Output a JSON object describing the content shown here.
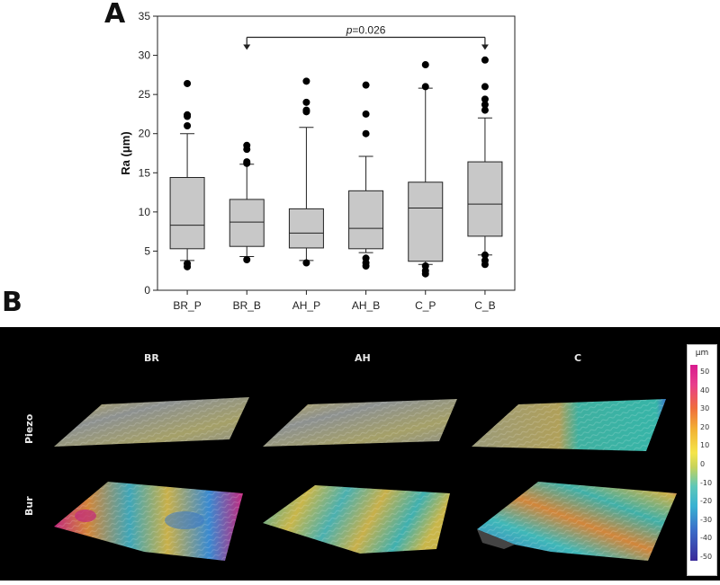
{
  "figure": {
    "panel_a_label": "A",
    "panel_b_label": "B"
  },
  "chart_data": {
    "type": "boxplot",
    "title": "",
    "xlabel": "",
    "ylabel": "Ra (μm)",
    "ylim": [
      0,
      35
    ],
    "yticks": [
      0,
      5,
      10,
      15,
      20,
      25,
      30,
      35
    ],
    "grid": false,
    "categories": [
      "BR_P",
      "BR_B",
      "AH_P",
      "AH_B",
      "C_P",
      "C_B"
    ],
    "boxes": [
      {
        "q1": 5.3,
        "median": 8.3,
        "q3": 14.4,
        "whisker_low": 3.8,
        "whisker_high": 20.0,
        "outliers": [
          3.0,
          3.4,
          21.0,
          22.2,
          22.4,
          26.4
        ]
      },
      {
        "q1": 5.6,
        "median": 8.7,
        "q3": 11.6,
        "whisker_low": 4.3,
        "whisker_high": 16.1,
        "outliers": [
          3.9,
          16.2,
          16.4,
          18.0,
          18.5
        ]
      },
      {
        "q1": 5.4,
        "median": 7.3,
        "q3": 10.4,
        "whisker_low": 3.8,
        "whisker_high": 20.8,
        "outliers": [
          3.5,
          22.8,
          23.0,
          24.0,
          26.7
        ]
      },
      {
        "q1": 5.3,
        "median": 7.9,
        "q3": 12.7,
        "whisker_low": 4.8,
        "whisker_high": 17.1,
        "outliers": [
          3.1,
          3.5,
          4.1,
          20.0,
          22.5,
          26.2
        ]
      },
      {
        "q1": 3.7,
        "median": 10.5,
        "q3": 13.8,
        "whisker_low": 3.3,
        "whisker_high": 25.8,
        "outliers": [
          2.1,
          2.5,
          3.1,
          26.0,
          28.8
        ]
      },
      {
        "q1": 6.9,
        "median": 11.0,
        "q3": 16.4,
        "whisker_low": 4.5,
        "whisker_high": 22.0,
        "outliers": [
          3.3,
          3.8,
          4.5,
          23.0,
          23.7,
          24.4,
          26.0,
          29.4
        ]
      }
    ],
    "annotation": {
      "from": "BR_B",
      "to": "C_B",
      "label_italic": "p",
      "label_rest": "=0.026",
      "y": 32.3
    }
  },
  "surface_panel": {
    "columns": [
      "BR",
      "AH",
      "C"
    ],
    "rows": [
      "Piezo",
      "Bur"
    ],
    "colorbar": {
      "unit": "μm",
      "ticks": [
        "50",
        "40",
        "30",
        "20",
        "10",
        "0",
        "-10",
        "-20",
        "-30",
        "-40",
        "-50"
      ]
    },
    "palette": {
      "yellow": "#c9b64a",
      "gray": "#8a8d8a",
      "teal": "#3fb8a7",
      "blue": "#3a78c8",
      "magenta": "#c2287d",
      "orange": "#d2863a"
    }
  }
}
